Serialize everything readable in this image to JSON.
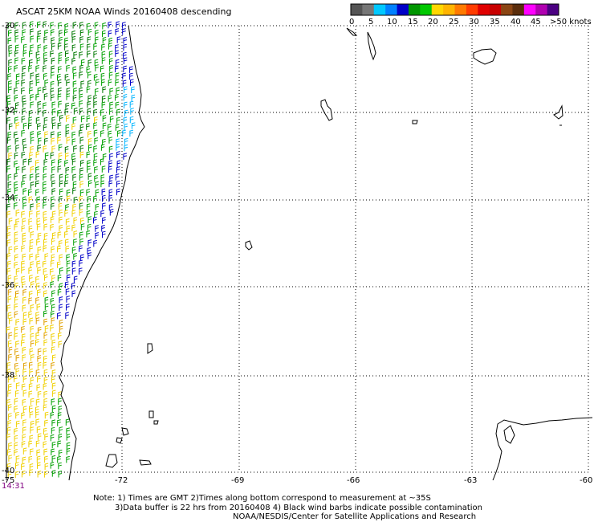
{
  "title": "ASCAT 25KM NOAA Winds 20160408 descending",
  "colorbar": {
    "colors": [
      "#555555",
      "#777777",
      "#00c8ff",
      "#0080ff",
      "#0000c8",
      "#009600",
      "#00c800",
      "#ffd700",
      "#ffb400",
      "#ff7a00",
      "#ff3c00",
      "#e00000",
      "#c80000",
      "#8b4513",
      "#5a2d0c",
      "#ff00ff",
      "#b000b0",
      "#4b0082"
    ],
    "labels": [
      "0",
      "5",
      "10",
      "15",
      "20",
      "25",
      "30",
      "35",
      "40",
      "45",
      ">50 knots"
    ]
  },
  "latitude_labels": [
    "-30",
    "-32",
    "-34",
    "-36",
    "-38",
    "-40"
  ],
  "longitude_labels": [
    "-75",
    "-72",
    "-69",
    "-66",
    "-63",
    "-60"
  ],
  "time_label": "14:31",
  "notes": {
    "line1": "Note: 1) Times are GMT 2)Times along bottom correspond to measurement at ~35S",
    "line2": "3)Data buffer is 22 hrs from 20160408 4) Black wind barbs indicate possible contamination",
    "line3": "NOAA/NESDIS/Center for Satellite Applications and Research"
  },
  "wind_colors": {
    "cyan": "#00b4ff",
    "blue": "#0000c8",
    "green": "#00a000",
    "darkgreen": "#007800",
    "yellow": "#f0d000",
    "orange": "#e0a000",
    "coast": "#000000"
  }
}
